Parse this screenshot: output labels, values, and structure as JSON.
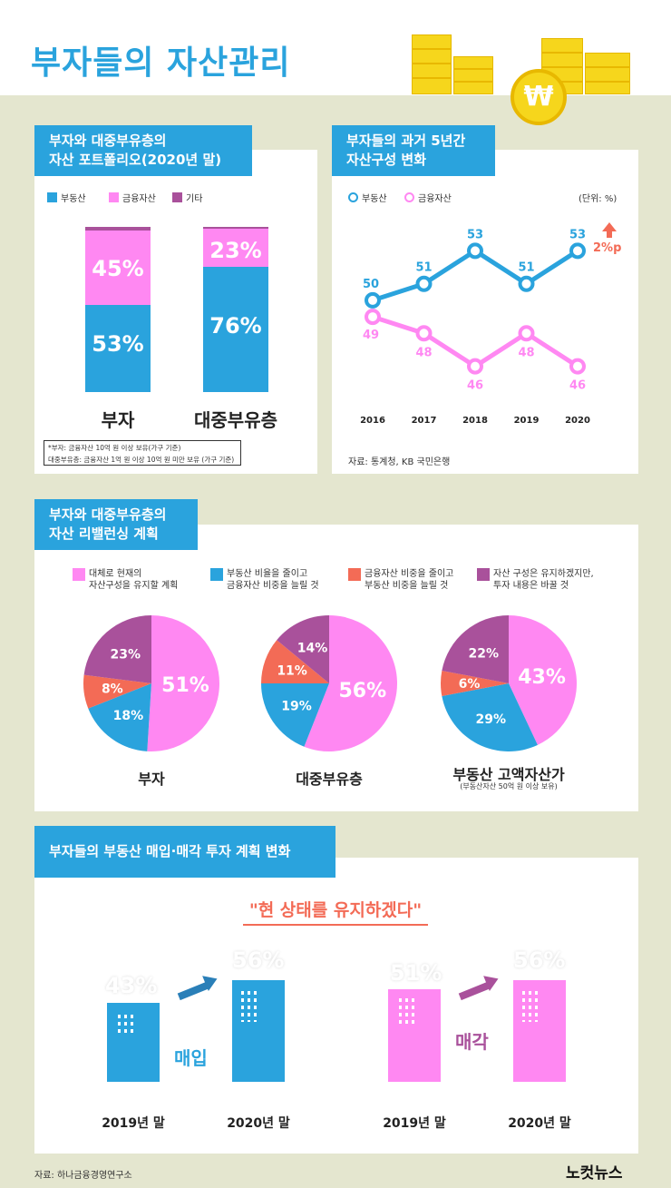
{
  "title": "부자들의 자산관리",
  "colors": {
    "blue": "#2aa3dd",
    "pink": "#ff88f2",
    "salmon": "#f36b56",
    "purple": "#a9519b"
  },
  "coin_symbol": "₩",
  "section1": {
    "title_lines": [
      "부자와 대중부유층의",
      "자산 포트폴리오(2020년 말)"
    ],
    "legend": [
      "부동산",
      "금융자산",
      "기타"
    ],
    "bars": [
      {
        "label": "부자",
        "real_estate": 53,
        "financial": 45,
        "other": 2,
        "real_estate_text": "53%",
        "financial_text": "45%"
      },
      {
        "label": "대중부유층",
        "real_estate": 76,
        "financial": 23,
        "other": 1,
        "real_estate_text": "76%",
        "financial_text": "23%"
      }
    ],
    "notes": [
      "*부자: 금융자산 10억 원 이상 보유(가구 기준)",
      "대중부유층: 금융자산 1억 원 이상 10억 원 미만 보유 (가구 기준)"
    ]
  },
  "section2": {
    "title_lines": [
      "부자들의 과거 5년간",
      "자산구성 변화"
    ],
    "legend": [
      "부동산",
      "금융자산"
    ],
    "unit": "(단위: %)",
    "change": "2%p",
    "source": "자료: 통계청, KB 국민은행"
  },
  "chart_data": {
    "type": "line",
    "title": "부자들의 과거 5년간 자산구성 변화",
    "x": [
      "2016",
      "2017",
      "2018",
      "2019",
      "2020"
    ],
    "series": [
      {
        "name": "부동산",
        "values": [
          50,
          51,
          53,
          51,
          53
        ]
      },
      {
        "name": "금융자산",
        "values": [
          49,
          48,
          46,
          48,
          46
        ]
      }
    ],
    "ylim": [
      44,
      55
    ],
    "ylabel": "%",
    "xlabel": ""
  },
  "section3": {
    "title_lines": [
      "부자와 대중부유층의",
      "자산 리밸런싱 계획"
    ],
    "legend": [
      [
        "대체로 현재의",
        "자산구성을 유지할 계획"
      ],
      [
        "부동산 비율을 줄이고",
        "금융자산 비중을 늘릴 것"
      ],
      [
        "금융자산 비중을 줄이고",
        "부동산 비중을 늘릴 것"
      ],
      [
        "자산 구성은 유지하겠지만,",
        "투자 내용은 바꿀 것"
      ]
    ],
    "pies": [
      {
        "label": "부자",
        "sub": "",
        "values": [
          51,
          18,
          8,
          23
        ]
      },
      {
        "label": "대중부유층",
        "sub": "",
        "values": [
          56,
          19,
          11,
          14
        ]
      },
      {
        "label": "부동산 고액자산가",
        "sub": "(부동산자산 50억 원 이상 보유)",
        "values": [
          43,
          29,
          6,
          22
        ]
      }
    ]
  },
  "section4": {
    "title": "부자들의 부동산 매입·매각 투자 계획 변화",
    "quote": "\"현 상태를 유지하겠다\"",
    "groups": [
      {
        "action": "매입",
        "from_year": "2019년 말",
        "from_pct": "43%",
        "from_value": 43,
        "to_year": "2020년 말",
        "to_pct": "56%",
        "to_value": 56
      },
      {
        "action": "매각",
        "from_year": "2019년 말",
        "from_pct": "51%",
        "from_value": 51,
        "to_year": "2020년 말",
        "to_pct": "56%",
        "to_value": 56
      }
    ]
  },
  "footer": {
    "source": "자료: 하나금융경영연구소",
    "brand": "노컷뉴스"
  }
}
